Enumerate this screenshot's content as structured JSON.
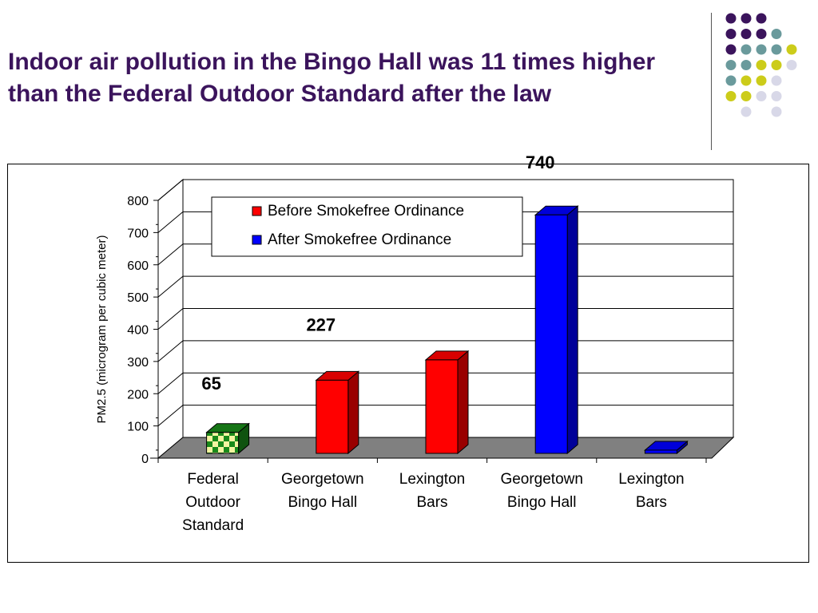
{
  "slide": {
    "title": "Indoor air pollution in the Bingo Hall was 11 times higher than the Federal Outdoor Standard after the law"
  },
  "decor": {
    "dot_colors": {
      "purple": "#3b145c",
      "teal": "#6a9a9c",
      "yellow": "#cccc1a",
      "lavender": "#d8d8e8"
    }
  },
  "chart_data": {
    "type": "bar",
    "title": "",
    "xlabel": "",
    "ylabel": "PM2.5 (microgram per cubic meter)",
    "ylim": [
      0,
      800
    ],
    "yticks": [
      0,
      100,
      200,
      300,
      400,
      500,
      600,
      700,
      800
    ],
    "grid": true,
    "legend_position": "top-left",
    "legend": [
      {
        "label": "Before Smokefree Ordinance",
        "color": "#ff0000"
      },
      {
        "label": "After Smokefree Ordinance",
        "color": "#0000ff"
      }
    ],
    "categories": [
      [
        "Federal",
        "Outdoor",
        "Standard"
      ],
      [
        "Georgetown",
        "Bingo Hall"
      ],
      [
        "Lexington",
        "Bars"
      ],
      [
        "Georgetown",
        "Bingo Hall"
      ],
      [
        "Lexington",
        "Bars"
      ]
    ],
    "bars": [
      {
        "value": 65,
        "series": "Federal Outdoor Standard",
        "color": "#1a8a1a",
        "pattern": "checker",
        "label": "65"
      },
      {
        "value": 227,
        "series": "Before Smokefree Ordinance",
        "color": "#ff0000",
        "label": "227"
      },
      {
        "value": 290,
        "series": "Before Smokefree Ordinance",
        "color": "#ff0000",
        "label": ""
      },
      {
        "value": 740,
        "series": "After Smokefree Ordinance",
        "color": "#0000ff",
        "label": "740"
      },
      {
        "value": 10,
        "series": "After Smokefree Ordinance",
        "color": "#0000ff",
        "label": ""
      }
    ]
  }
}
